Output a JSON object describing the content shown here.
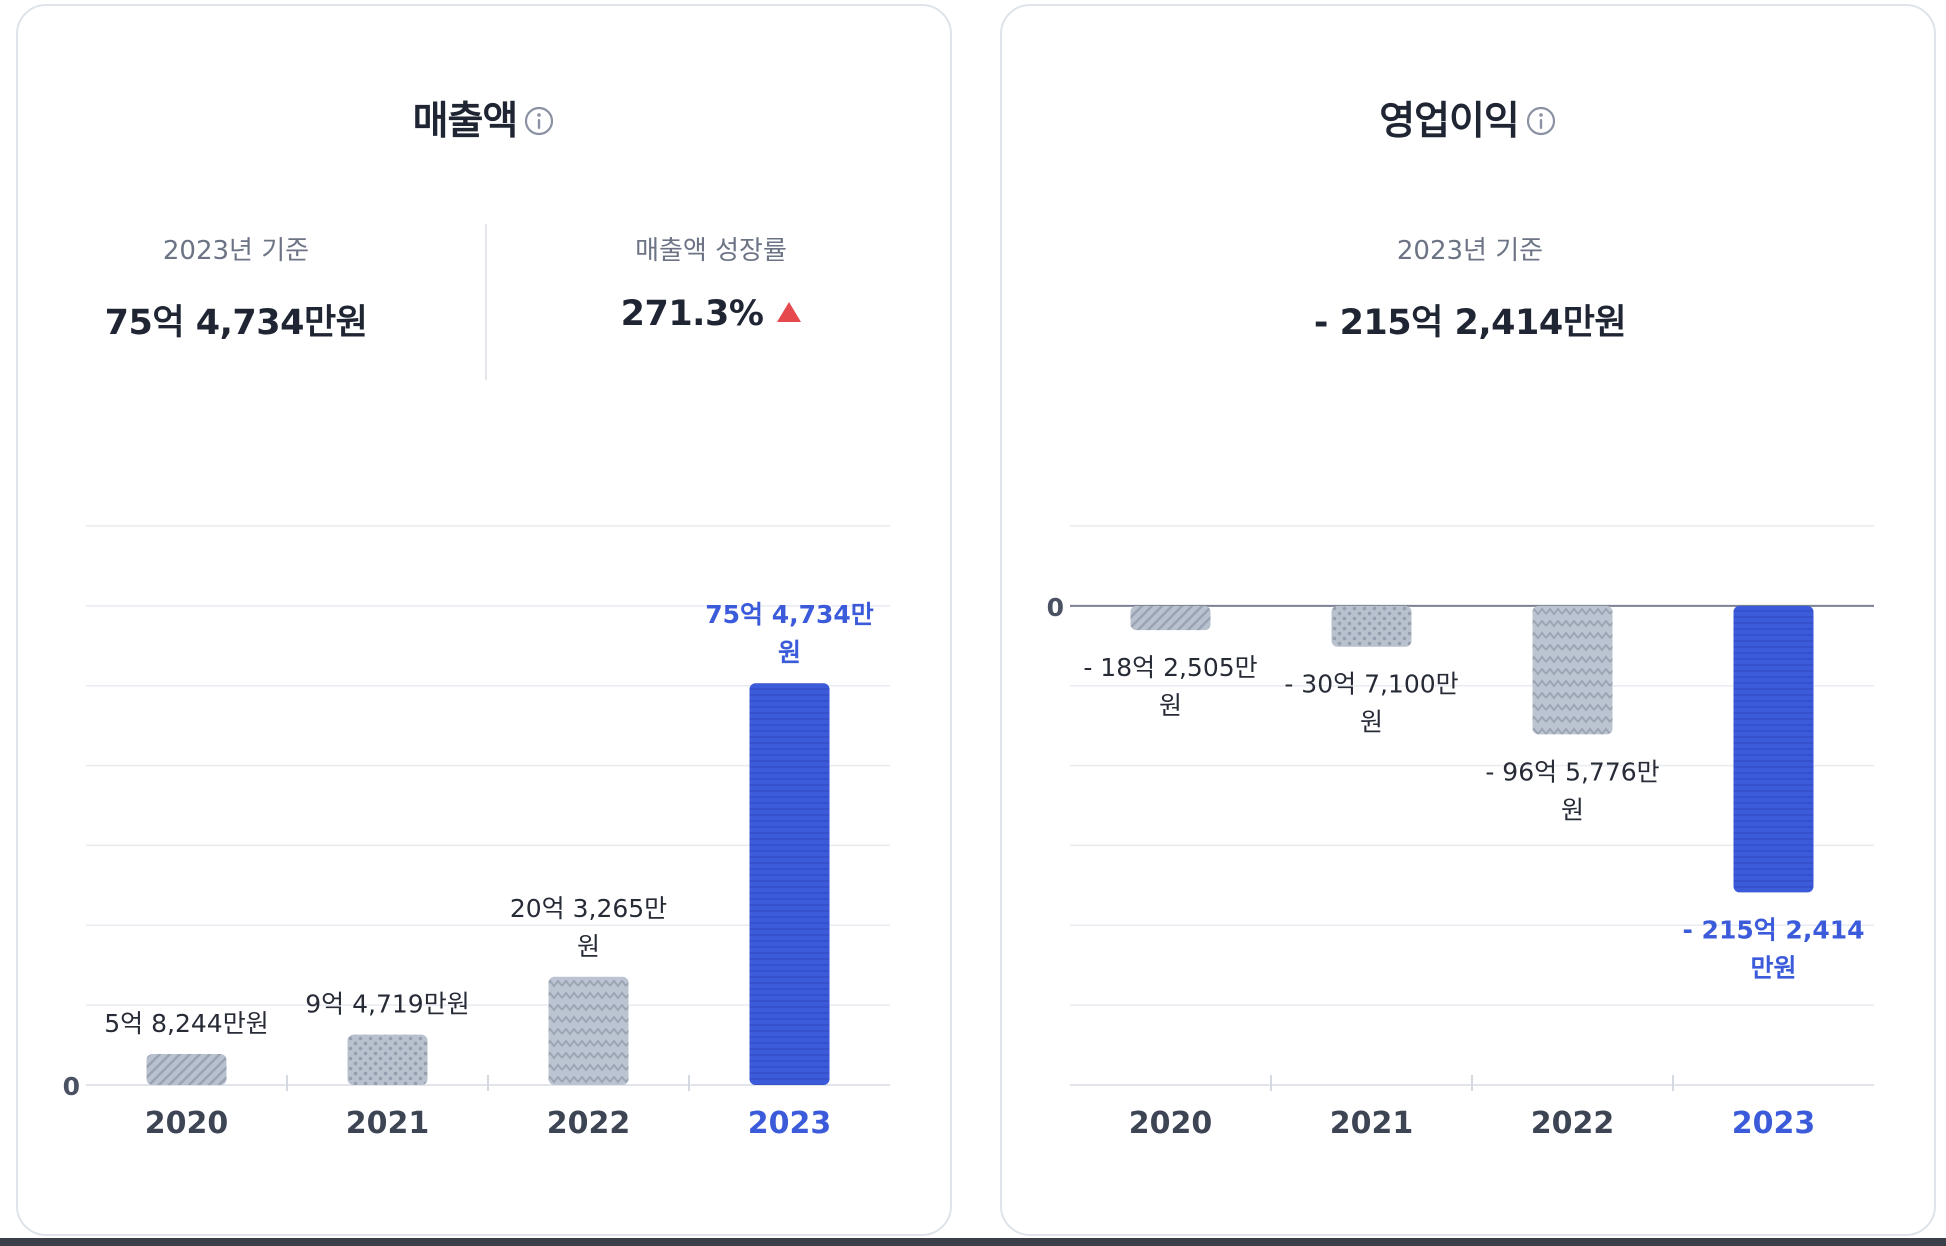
{
  "revenue": {
    "title": "매출액",
    "basis_label": "2023년 기준",
    "basis_value": "75억 4,734만원",
    "growth_label": "매출액 성장률",
    "growth_value": "271.3%"
  },
  "profit": {
    "title": "영업이익",
    "basis_label": "2023년 기준",
    "basis_value": "- 215억 2,414만원"
  },
  "colors": {
    "highlight": "#3b5bdb",
    "bar_gray": "#b4bccb",
    "axis": "#6b7385",
    "up": "#e5484d"
  },
  "chart_data": [
    {
      "type": "bar",
      "title": "매출액",
      "categories": [
        "2020",
        "2021",
        "2022",
        "2023"
      ],
      "values": [
        582440000,
        947190000,
        2032650000,
        7547340000
      ],
      "labels": [
        [
          "5억 8,244만원"
        ],
        [
          "9억 4,719만원"
        ],
        [
          "20억 3,265만",
          "원"
        ],
        [
          "75억 4,734만",
          "원"
        ]
      ],
      "highlight_index": 3,
      "zero_label": "0",
      "ylim": [
        0,
        10500000000
      ],
      "grid": true
    },
    {
      "type": "bar",
      "title": "영업이익",
      "categories": [
        "2020",
        "2021",
        "2022",
        "2023"
      ],
      "values": [
        -1825050000,
        -3071000000,
        -9657760000,
        -21524140000
      ],
      "labels": [
        [
          "- 18억 2,505만",
          "원"
        ],
        [
          "- 30억 7,100만",
          "원"
        ],
        [
          "- 96억 5,776만",
          "원"
        ],
        [
          "- 215억 2,414",
          "만원"
        ]
      ],
      "highlight_index": 3,
      "zero_label": "0",
      "ylim": [
        -36000000000,
        6000000000
      ],
      "grid": true
    }
  ]
}
